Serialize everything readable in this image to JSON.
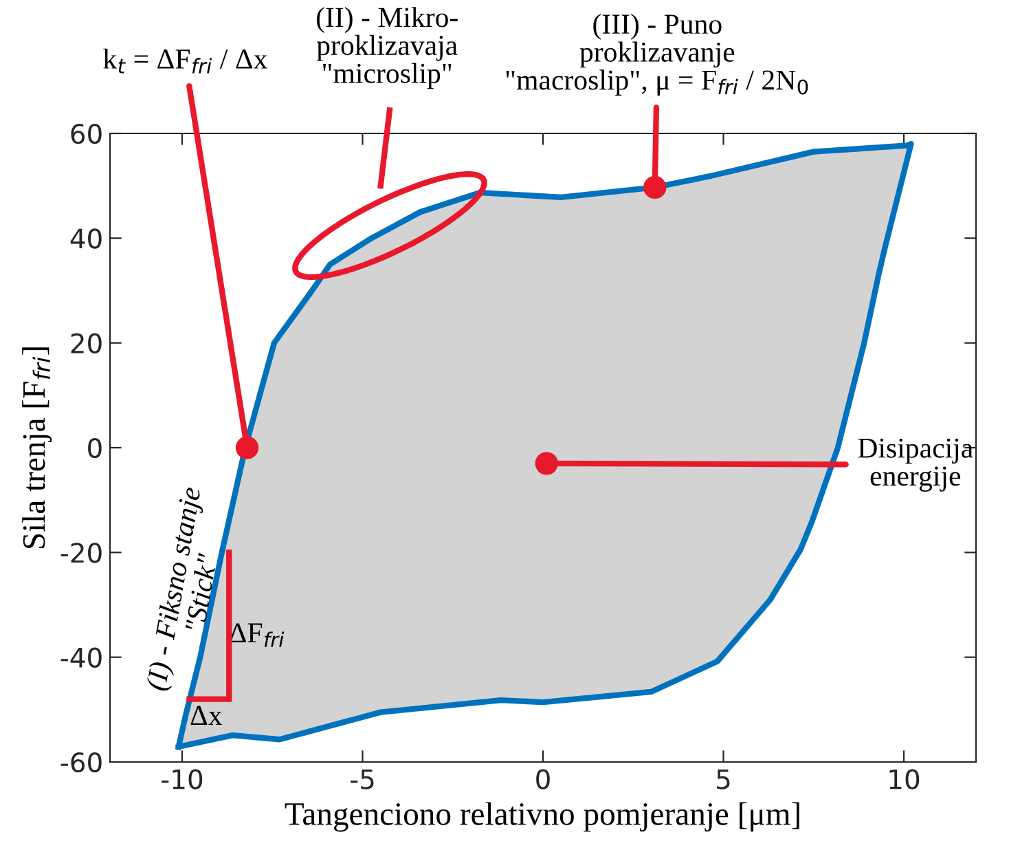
{
  "chart_data": {
    "type": "area",
    "xlabel": "Tangenciono relativno pomjeranje [μm]",
    "ylabel": "Sila trenja [F$_{fri}$]",
    "xlim": [
      -12,
      12
    ],
    "xticks": [
      -10,
      -5,
      0,
      5,
      10
    ],
    "ylim": [
      -60,
      60
    ],
    "yticks": [
      -60,
      -40,
      -20,
      0,
      20,
      40,
      60
    ],
    "grid": false,
    "legend": false,
    "colors": [
      "#d3d3d3"
    ],
    "series": [
      {
        "color": "#0072bd",
        "x": [
          -10.1,
          -9.9,
          -9.5,
          -8.9,
          -8.25,
          -7.45,
          -6.4,
          -5.9,
          -4.75,
          -3.4,
          -1.74,
          0.5,
          3.1,
          4.6,
          7.5,
          10.1,
          10.2,
          9.47,
          9.3,
          8.9,
          8.17,
          7.46,
          7.14,
          6.3,
          4.83,
          3.0,
          0.0,
          -1.16,
          -4.5,
          -7.3,
          -8.6,
          -10.1
        ],
        "values": [
          -57.1,
          -51,
          -40,
          -20,
          0,
          20,
          30,
          35,
          40,
          45,
          48.7,
          47.8,
          49.7,
          51.8,
          56.5,
          57.7,
          58,
          38,
          33,
          20,
          0,
          -14,
          -19.4,
          -29,
          -40.8,
          -46.6,
          -48.6,
          -48.2,
          -50.5,
          -55.7,
          -54.9,
          -57.1
        ]
      }
    ],
    "annotations": [
      {
        "text": "k$_{t}$ = ΔF$_{fri}$ / Δx",
        "x": -8.2,
        "y": 0
      },
      "(II) - Mikro-\nproklizavaja\n\"microslip\"",
      {
        "text": "(III) - Puno\nproklizavanje\n\"macroslip\", μ = F$_{fri}$ / 2N$_{0}$",
        "x": 3.1,
        "y": 49.7
      },
      {
        "text": "Disipacija\nenergije",
        "x": 0.1,
        "y": -3
      },
      "(I) - Fiksno stanje\n\"Stick\"",
      "ΔF$_{fri}$",
      "Δx"
    ]
  }
}
